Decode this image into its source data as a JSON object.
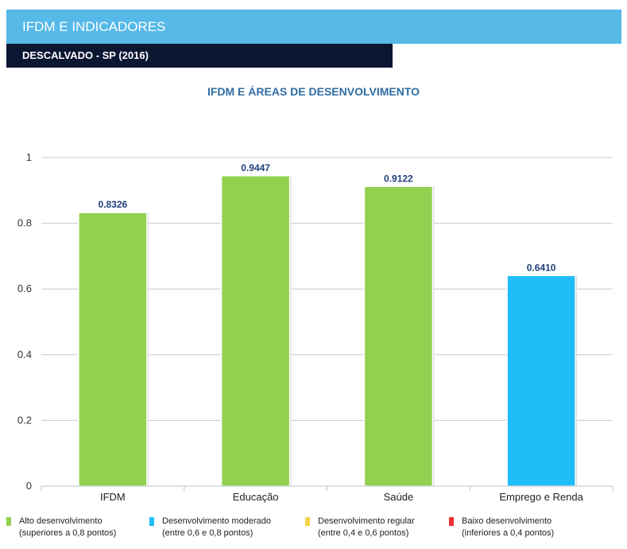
{
  "header": {
    "title": "IFDM E INDICADORES",
    "subtitle": "DESCALVADO - SP (2016)"
  },
  "colors": {
    "header_bg": "#56b9e8",
    "subheader_bg": "#0b1633",
    "alto": "#92d050",
    "moderado": "#1fbef8",
    "regular": "#f5d14a",
    "baixo": "#ea2f2f",
    "value_label": "#1f3f7a"
  },
  "chart_data": {
    "type": "bar",
    "title": "IFDM E ÁREAS DE DESENVOLVIMENTO",
    "categories": [
      "IFDM",
      "Educação",
      "Saúde",
      "Emprego e Renda"
    ],
    "values": [
      0.8326,
      0.9447,
      0.9122,
      0.641
    ],
    "value_labels": [
      "0.8326",
      "0.9447",
      "0.9122",
      "0.6410"
    ],
    "bar_classes": [
      "alto",
      "alto",
      "alto",
      "moderado"
    ],
    "ylim": [
      0,
      1
    ],
    "yticks": [
      0,
      0.2,
      0.4,
      0.6,
      0.8,
      1
    ],
    "ytick_labels": [
      "0",
      "0.2",
      "0.4",
      "0.6",
      "0.8",
      "1"
    ],
    "xlabel": "",
    "ylabel": "",
    "grid": true,
    "legend_position": "bottom"
  },
  "legend": [
    {
      "line1": "Alto desenvolvimento",
      "line2": "(superiores a 0,8 pontos)",
      "color_key": "alto"
    },
    {
      "line1": "Desenvolvimento moderado",
      "line2": "(entre 0,6 e 0,8 pontos)",
      "color_key": "moderado"
    },
    {
      "line1": "Desenvolvimento regular",
      "line2": "(entre 0,4 e 0,6 pontos)",
      "color_key": "regular"
    },
    {
      "line1": "Baixo desenvolvimento",
      "line2": "(inferiores a 0,4 pontos)",
      "color_key": "baixo"
    }
  ]
}
